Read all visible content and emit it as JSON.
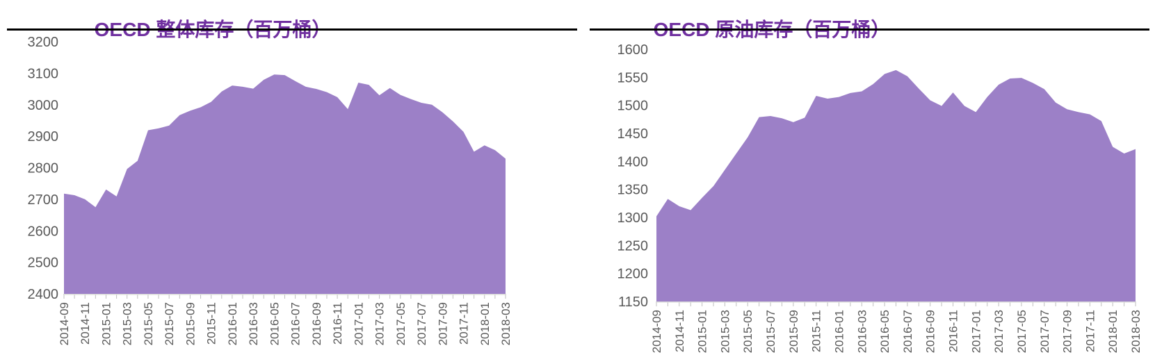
{
  "style": {
    "background": "#FFFFFF",
    "area_fill": "#9C80C7",
    "title_color": "#7030A0",
    "axis_text_color": "#595959",
    "baseline_color": "#D9D9D9",
    "tick_color": "#BFBFBF",
    "rule_color": "#000000"
  },
  "chart_data": [
    {
      "type": "area",
      "title": "OECD 整体库存（百万桶）",
      "xlabel": "",
      "ylabel": "",
      "legend": "none",
      "grid": false,
      "ylim": [
        2400,
        3200
      ],
      "ytick_step": 100,
      "xlabel_every": 2,
      "x": [
        "2014-09",
        "2014-10",
        "2014-11",
        "2014-12",
        "2015-01",
        "2015-02",
        "2015-03",
        "2015-04",
        "2015-05",
        "2015-06",
        "2015-07",
        "2015-08",
        "2015-09",
        "2015-10",
        "2015-11",
        "2015-12",
        "2016-01",
        "2016-02",
        "2016-03",
        "2016-04",
        "2016-05",
        "2016-06",
        "2016-07",
        "2016-08",
        "2016-09",
        "2016-10",
        "2016-11",
        "2016-12",
        "2017-01",
        "2017-02",
        "2017-03",
        "2017-04",
        "2017-05",
        "2017-06",
        "2017-07",
        "2017-08",
        "2017-09",
        "2017-10",
        "2017-11",
        "2017-12",
        "2018-01",
        "2018-02",
        "2018-03"
      ],
      "values": [
        2718,
        2713,
        2700,
        2675,
        2731,
        2709,
        2796,
        2822,
        2919,
        2925,
        2934,
        2967,
        2981,
        2992,
        3009,
        3042,
        3061,
        3057,
        3051,
        3079,
        3096,
        3094,
        3075,
        3057,
        3050,
        3040,
        3024,
        2986,
        3070,
        3063,
        3030,
        3053,
        3031,
        3018,
        3006,
        3000,
        2976,
        2947,
        2914,
        2851,
        2871,
        2856,
        2829
      ]
    },
    {
      "type": "area",
      "title": "OECD 原油库存（百万桶）",
      "xlabel": "",
      "ylabel": "",
      "legend": "none",
      "grid": false,
      "ylim": [
        1150,
        1600
      ],
      "ytick_step": 50,
      "xlabel_every": 2,
      "x": [
        "2014-09",
        "2014-10",
        "2014-11",
        "2014-12",
        "2015-01",
        "2015-02",
        "2015-03",
        "2015-04",
        "2015-05",
        "2015-06",
        "2015-07",
        "2015-08",
        "2015-09",
        "2015-10",
        "2015-11",
        "2015-12",
        "2016-01",
        "2016-02",
        "2016-03",
        "2016-04",
        "2016-05",
        "2016-06",
        "2016-07",
        "2016-08",
        "2016-09",
        "2016-10",
        "2016-11",
        "2016-12",
        "2017-01",
        "2017-02",
        "2017-03",
        "2017-04",
        "2017-05",
        "2017-06",
        "2017-07",
        "2017-08",
        "2017-09",
        "2017-10",
        "2017-11",
        "2017-12",
        "2018-01",
        "2018-02",
        "2018-03"
      ],
      "values": [
        1302,
        1333,
        1320,
        1313,
        1335,
        1356,
        1385,
        1414,
        1443,
        1479,
        1481,
        1477,
        1470,
        1478,
        1517,
        1512,
        1515,
        1522,
        1525,
        1538,
        1556,
        1563,
        1552,
        1530,
        1509,
        1499,
        1523,
        1499,
        1488,
        1515,
        1537,
        1548,
        1549,
        1540,
        1529,
        1505,
        1493,
        1488,
        1484,
        1472,
        1426,
        1414,
        1422
      ]
    }
  ]
}
